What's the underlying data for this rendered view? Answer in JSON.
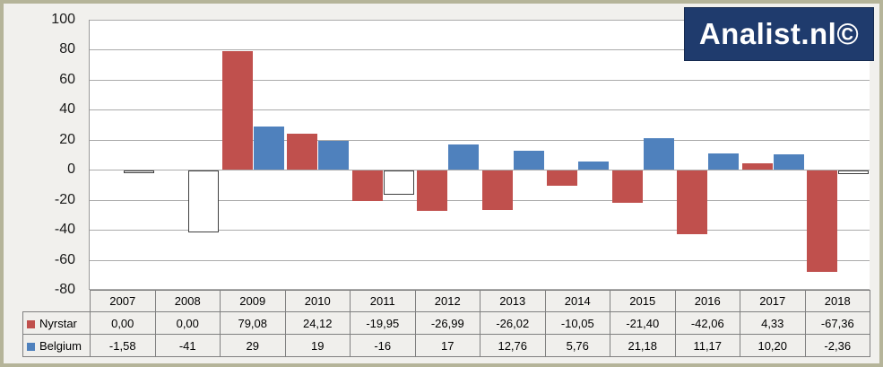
{
  "logo": {
    "text": "Analist.nl©"
  },
  "colors": {
    "nyrstar": "#C0504D",
    "belgium": "#4F81BD",
    "belgium_negative_fill": "#FFFFFF",
    "belgium_negative_border": "#404040",
    "gridline": "#ABABAB",
    "axis_line": "#9A9A9A",
    "logo_bg": "#1F3B6D",
    "logo_text": "#FFFFFF",
    "page_bg": "#F1F0ED",
    "frame_border": "#B5B499",
    "table_border": "#808080"
  },
  "chart_data": {
    "type": "bar",
    "title": "",
    "xlabel": "",
    "ylabel": "",
    "categories": [
      "2007",
      "2008",
      "2009",
      "2010",
      "2011",
      "2012",
      "2013",
      "2014",
      "2015",
      "2016",
      "2017",
      "2018"
    ],
    "series": [
      {
        "name": "Nyrstar",
        "color_key": "nyrstar",
        "values": [
          0.0,
          0.0,
          79.08,
          24.12,
          -19.95,
          -26.99,
          -26.02,
          -10.05,
          -21.4,
          -42.06,
          4.33,
          -67.36
        ]
      },
      {
        "name": "Belgium",
        "color_key": "belgium",
        "negative_style": "hollow",
        "values": [
          -1.58,
          -41,
          29,
          19,
          -16,
          17,
          12.76,
          5.76,
          21.18,
          11.17,
          10.2,
          -2.36
        ]
      }
    ],
    "ylim": [
      -80,
      100
    ],
    "ytick_step": 20,
    "y_axis_labels": [
      "100",
      "80",
      "60",
      "40",
      "20",
      "0",
      "-20",
      "-40",
      "-60",
      "-80"
    ],
    "grid": true,
    "legend_position": "table-left"
  },
  "table": {
    "header_years": [
      "2007",
      "2008",
      "2009",
      "2010",
      "2011",
      "2012",
      "2013",
      "2014",
      "2015",
      "2016",
      "2017",
      "2018"
    ],
    "rows": [
      {
        "label": "Nyrstar",
        "swatch_key": "nyrstar",
        "values": [
          "0,00",
          "0,00",
          "79,08",
          "24,12",
          "-19,95",
          "-26,99",
          "-26,02",
          "-10,05",
          "-21,40",
          "-42,06",
          "4,33",
          "-67,36"
        ]
      },
      {
        "label": "Belgium",
        "swatch_key": "belgium",
        "values": [
          "-1,58",
          "-41",
          "29",
          "19",
          "-16",
          "17",
          "12,76",
          "5,76",
          "21,18",
          "11,17",
          "10,20",
          "-2,36"
        ]
      }
    ]
  }
}
